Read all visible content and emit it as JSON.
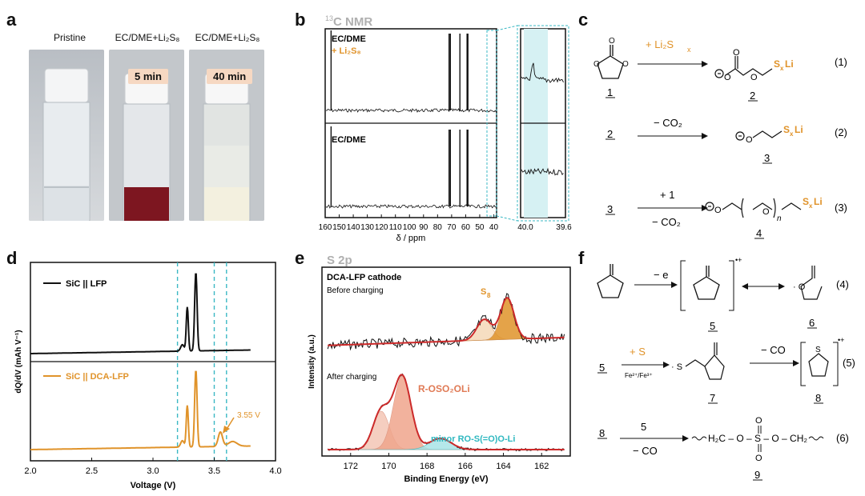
{
  "panels": {
    "a": "a",
    "b": "b",
    "c": "c",
    "d": "d",
    "e": "e",
    "f": "f"
  },
  "panel_a": {
    "labels": [
      "Pristine",
      "EC/DME+Li₂S₈",
      "EC/DME+Li₂S₈"
    ],
    "times": [
      "5 min",
      "40 min"
    ],
    "colors": {
      "clear": "#d9dde0",
      "red": "#7d1620",
      "cream": "#f3f0df"
    }
  },
  "panel_b": {
    "title_sup": "13",
    "title": "C NMR",
    "top_label_1": "EC/DME",
    "top_label_2": "+ Li₂S₈",
    "bottom_label": "EC/DME",
    "xlabel": "δ / ppm",
    "x_ticks": [
      "160",
      "150",
      "140",
      "130",
      "120",
      "110",
      "100",
      "90",
      "80",
      "70",
      "60",
      "50",
      "40"
    ],
    "zoom_ticks": [
      "40.0",
      "39.6"
    ],
    "chart_data": {
      "type": "line",
      "series": [
        {
          "name": "EC/DME + Li₂S₈",
          "peaks_ppm": [
            155.8,
            71.8,
            70.9,
            64.1,
            59.0,
            58.4
          ],
          "zoom_peak_ppm": 39.9
        },
        {
          "name": "EC/DME",
          "peaks_ppm": [
            155.8,
            71.8,
            70.9,
            64.1,
            59.0,
            58.4
          ]
        }
      ],
      "xlim": [
        160,
        38
      ]
    }
  },
  "panel_c": {
    "arrow1": "+ Li₂S",
    "arrow1_sub": "x",
    "arrow2": "− CO₂",
    "arrow3_top": "+ 1",
    "arrow3_bottom": "− CO₂",
    "eq": [
      "(1)",
      "(2)",
      "(3)"
    ],
    "cmp": [
      "1",
      "2",
      "2",
      "3",
      "3",
      "4"
    ],
    "sxli": "S",
    "sxli_sub": "x",
    "sxli_tail": "Li",
    "n": "n"
  },
  "panel_d": {
    "legend_1": "SiC || LFP",
    "legend_2": "SiC || DCA-LFP",
    "annotation": "3.55 V",
    "ylabel": "dQ/dV (mAh V⁻¹)",
    "xlabel": "Voltage (V)",
    "x_ticks": [
      "2.0",
      "2.5",
      "3.0",
      "3.5",
      "4.0"
    ],
    "chart_data": {
      "type": "line",
      "xlim": [
        2.0,
        4.0
      ],
      "series": [
        {
          "name": "SiC || LFP",
          "peaks_V": [
            3.28,
            3.35
          ],
          "x_range": [
            2.0,
            3.8
          ]
        },
        {
          "name": "SiC || DCA-LFP",
          "peaks_V": [
            3.28,
            3.35,
            3.55
          ],
          "x_range": [
            2.0,
            3.8
          ]
        }
      ],
      "dashed_lines_V": [
        3.2,
        3.5,
        3.6
      ]
    },
    "colors": {
      "black": "#111111",
      "orange": "#e0932a",
      "dashed": "#3bb8c4"
    }
  },
  "panel_e": {
    "title": "S 2p",
    "cathode": "DCA-LFP cathode",
    "before": "Before charging",
    "after": "After charging",
    "s8": "S",
    "s8_sub": "8",
    "r_oso2oli": "R-OSO₂OLi",
    "minor": "minor RO-S(=O)O-Li",
    "ylabel": "Intensity (a.u.)",
    "xlabel": "Binding Energy (eV)",
    "x_ticks": [
      "172",
      "170",
      "168",
      "166",
      "164",
      "162"
    ],
    "chart_data": {
      "type": "line",
      "xlim": [
        173.5,
        160.5
      ],
      "before": {
        "peaks_eV": [
          165.0,
          163.8
        ]
      },
      "after": {
        "peaks_eV": [
          170.4,
          169.3,
          167.3
        ]
      }
    },
    "colors": {
      "orange": "#e0932a",
      "salmon": "#f0a58c",
      "teal": "#2fb8c0",
      "fit": "#cc2a2a"
    }
  },
  "panel_f": {
    "arrow4": "− e",
    "arrow5_top": "+ S",
    "arrow5_bottom": "Fe²⁺/Fe³⁺",
    "arrow5b": "− CO",
    "arrow6_top": "5",
    "arrow6_bottom": "− CO",
    "eq": [
      "(4)",
      "(5)",
      "(6)"
    ],
    "cmp": [
      "5",
      "6",
      "5",
      "7",
      "8",
      "8",
      "9"
    ],
    "product": "H₂C – O – S – O – CH₂"
  }
}
